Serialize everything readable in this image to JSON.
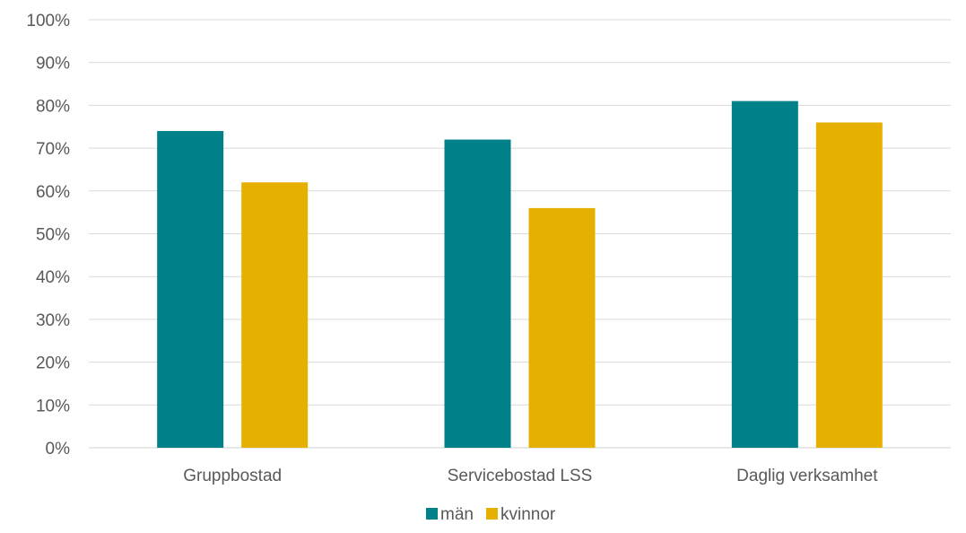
{
  "chart_data": {
    "type": "bar",
    "title": "",
    "xlabel": "",
    "ylabel": "",
    "categories": [
      "Gruppbostad",
      "Servicebostad LSS",
      "Daglig verksamhet"
    ],
    "series": [
      {
        "name": "män",
        "values": [
          74,
          72,
          81
        ],
        "color": "#00818A"
      },
      {
        "name": "kvinnor",
        "values": [
          62,
          56,
          76
        ],
        "color": "#E6B000"
      }
    ],
    "ylim": [
      0,
      100
    ],
    "yticks": [
      "0%",
      "10%",
      "20%",
      "30%",
      "40%",
      "50%",
      "60%",
      "70%",
      "80%",
      "90%",
      "100%"
    ],
    "grid": true,
    "legend_position": "bottom"
  }
}
